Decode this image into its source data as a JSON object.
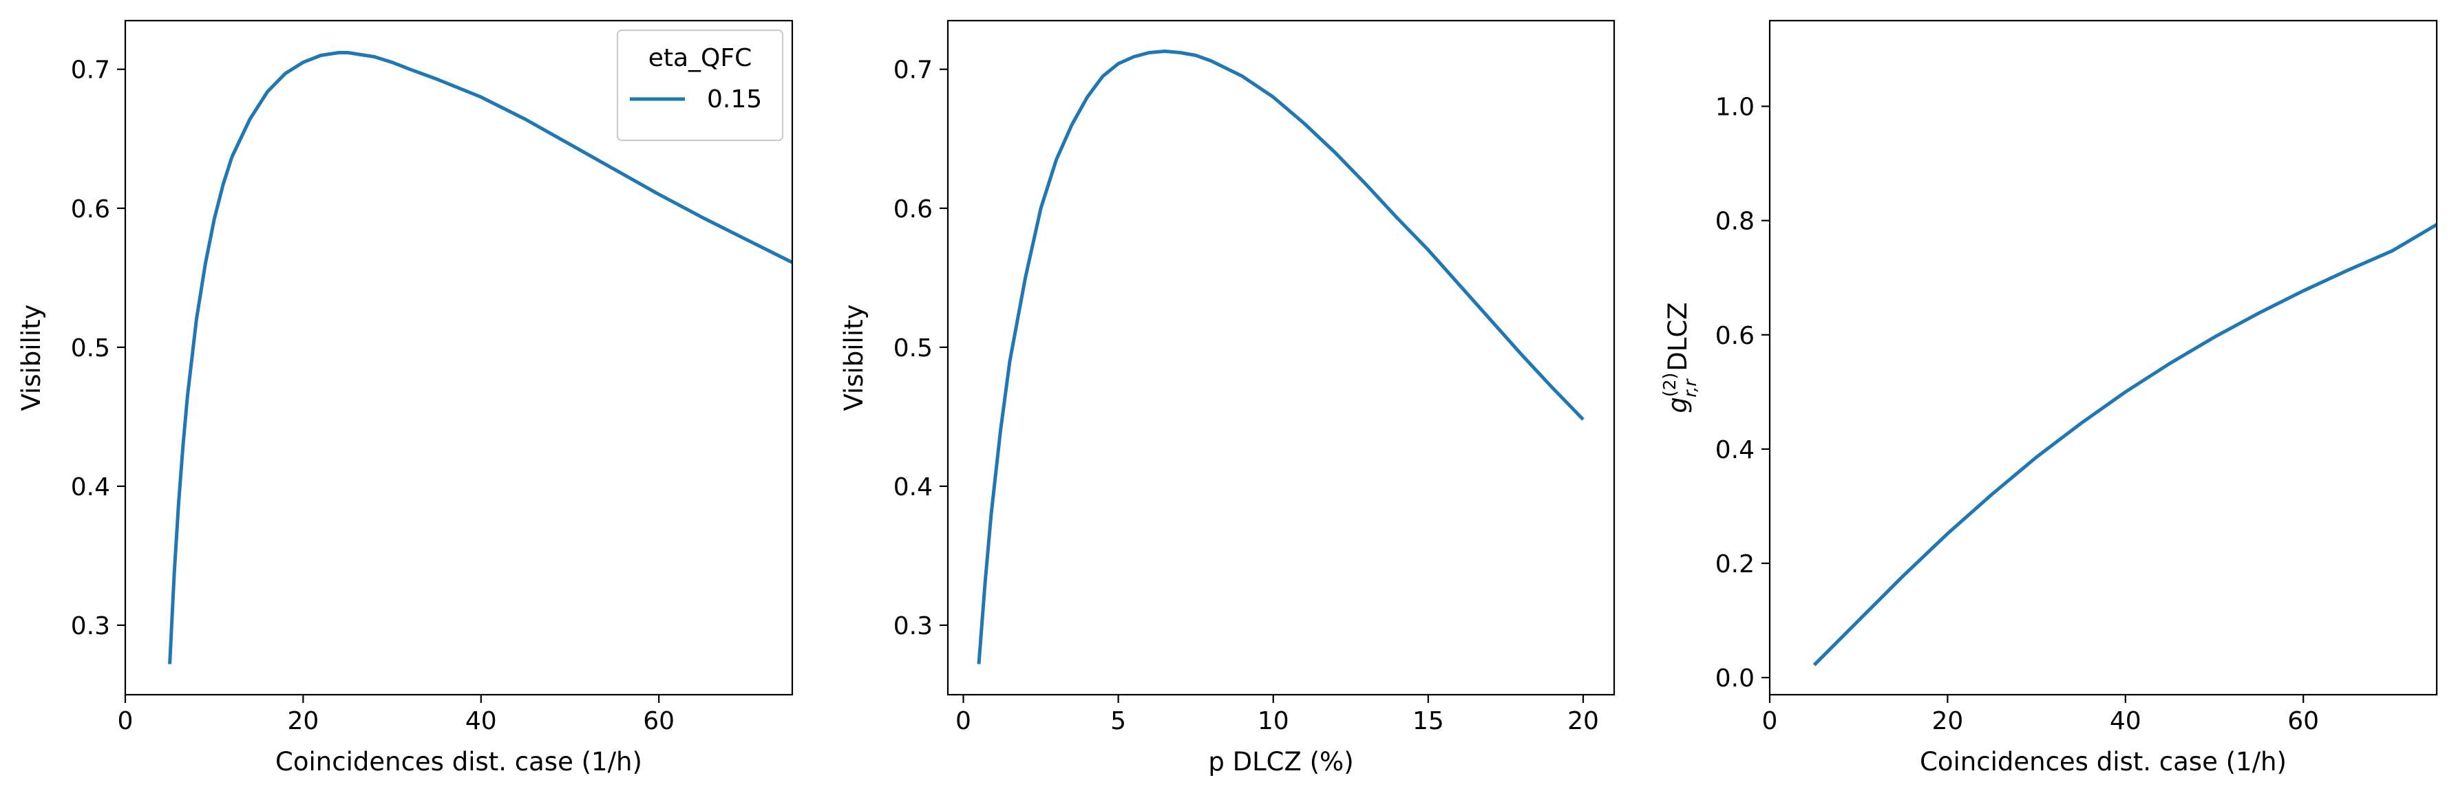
{
  "colors": {
    "series": "#1f77b4"
  },
  "chart_data": [
    {
      "type": "line",
      "xlabel": "Coincidences dist. case (1/h)",
      "ylabel": "Visibility",
      "xlim": [
        0,
        75
      ],
      "ylim": [
        0.25,
        0.735
      ],
      "xticks": [
        0,
        20,
        40,
        60
      ],
      "yticks": [
        0.3,
        0.4,
        0.5,
        0.6,
        0.7
      ],
      "xtick_labels": [
        "0",
        "20",
        "40",
        "60"
      ],
      "ytick_labels": [
        "0.3",
        "0.4",
        "0.5",
        "0.6",
        "0.7"
      ],
      "grid": false,
      "legend": {
        "title": "eta_QFC",
        "placement": "top-right",
        "entries": [
          "0.15"
        ]
      },
      "series": [
        {
          "name": "0.15",
          "x": [
            5,
            5.5,
            6,
            6.5,
            7,
            8,
            9,
            10,
            11,
            12,
            14,
            16,
            18,
            20,
            22,
            24,
            25,
            26,
            28,
            30,
            32,
            35,
            40,
            45,
            50,
            55,
            60,
            65,
            70,
            75
          ],
          "y": [
            0.272,
            0.337,
            0.388,
            0.43,
            0.465,
            0.52,
            0.56,
            0.592,
            0.617,
            0.637,
            0.664,
            0.684,
            0.697,
            0.705,
            0.71,
            0.712,
            0.712,
            0.711,
            0.709,
            0.705,
            0.7,
            0.693,
            0.68,
            0.664,
            0.646,
            0.628,
            0.61,
            0.593,
            0.577,
            0.561
          ]
        }
      ]
    },
    {
      "type": "line",
      "xlabel": "p DLCZ (%)",
      "ylabel": "Visibility",
      "xlim": [
        -0.5,
        21
      ],
      "ylim": [
        0.25,
        0.735
      ],
      "xticks": [
        0,
        5,
        10,
        15,
        20
      ],
      "yticks": [
        0.3,
        0.4,
        0.5,
        0.6,
        0.7
      ],
      "xtick_labels": [
        "0",
        "5",
        "10",
        "15",
        "20"
      ],
      "ytick_labels": [
        "0.3",
        "0.4",
        "0.5",
        "0.6",
        "0.7"
      ],
      "grid": false,
      "series": [
        {
          "x": [
            0.5,
            0.7,
            0.9,
            1.2,
            1.5,
            2,
            2.5,
            3,
            3.5,
            4,
            4.5,
            5,
            5.5,
            6,
            6.5,
            7,
            7.5,
            8,
            9,
            10,
            11,
            12,
            13,
            14,
            15,
            16,
            17,
            18,
            19,
            20
          ],
          "y": [
            0.272,
            0.33,
            0.38,
            0.44,
            0.49,
            0.55,
            0.6,
            0.635,
            0.66,
            0.68,
            0.695,
            0.704,
            0.709,
            0.712,
            0.713,
            0.712,
            0.71,
            0.706,
            0.695,
            0.68,
            0.661,
            0.64,
            0.617,
            0.593,
            0.57,
            0.545,
            0.52,
            0.495,
            0.471,
            0.448
          ]
        }
      ]
    },
    {
      "type": "line",
      "xlabel": "Coincidences dist. case (1/h)",
      "ylabel": "g^(2)_r,r DLCZ",
      "ylabel_parts": {
        "base": "g",
        "sup": "(2)",
        "sub": "r,r",
        "tail": " DLCZ"
      },
      "xlim": [
        0,
        75
      ],
      "ylim": [
        -0.03,
        1.15
      ],
      "xticks": [
        0,
        20,
        40,
        60
      ],
      "yticks": [
        0.0,
        0.2,
        0.4,
        0.6,
        0.8,
        1.0
      ],
      "xtick_labels": [
        "0",
        "20",
        "40",
        "60"
      ],
      "ytick_labels": [
        "0.0",
        "0.2",
        "0.4",
        "0.6",
        "0.8",
        "1.0"
      ],
      "grid": false,
      "series": [
        {
          "x": [
            5,
            10,
            15,
            20,
            25,
            30,
            35,
            40,
            45,
            50,
            55,
            60,
            65,
            70,
            75
          ],
          "y": [
            0.022,
            0.1,
            0.178,
            0.252,
            0.321,
            0.386,
            0.445,
            0.5,
            0.55,
            0.596,
            0.638,
            0.677,
            0.713,
            0.747,
            0.793
          ]
        }
      ]
    }
  ]
}
